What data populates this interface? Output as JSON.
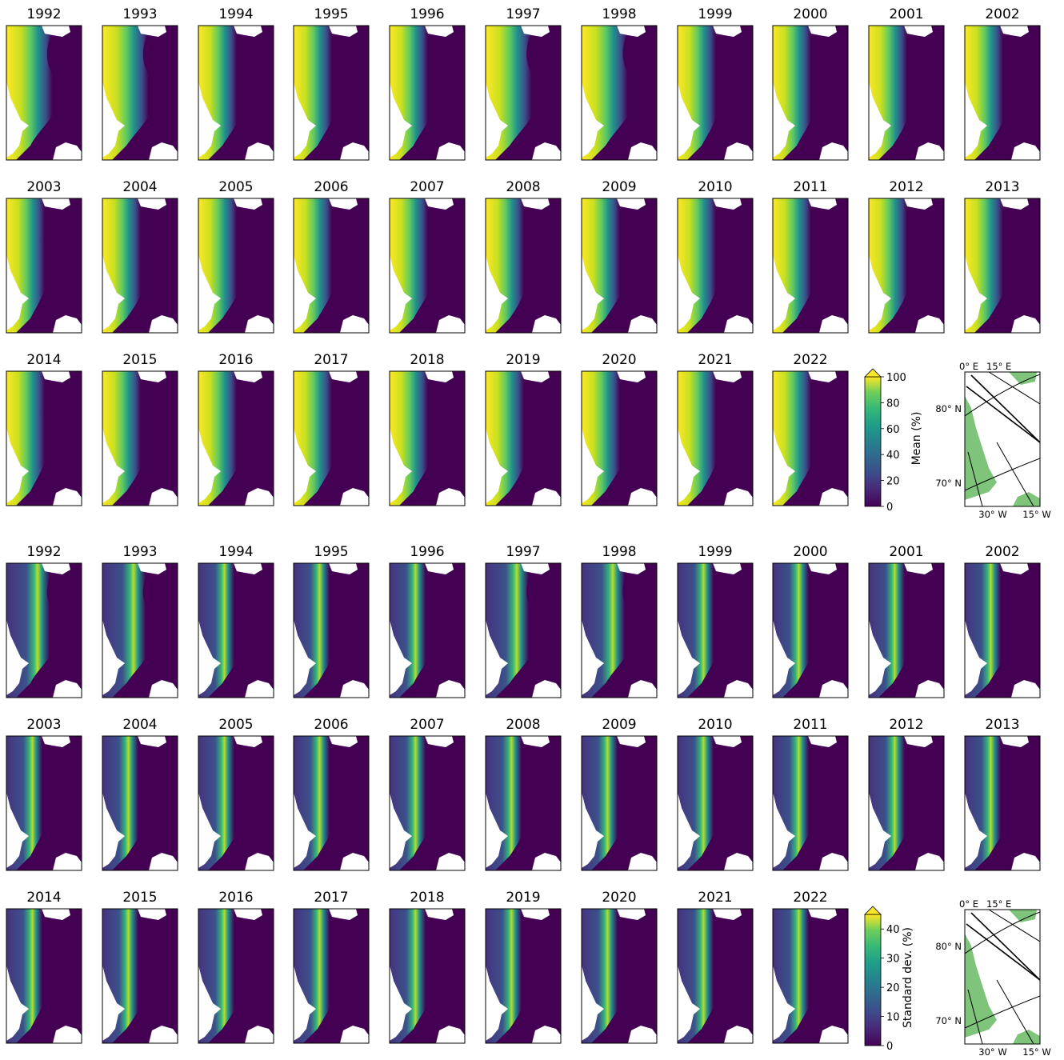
{
  "panels": {
    "mean": {
      "years": [
        "1992",
        "1993",
        "1994",
        "1995",
        "1996",
        "1997",
        "1998",
        "1999",
        "2000",
        "2001",
        "2002",
        "2003",
        "2004",
        "2005",
        "2006",
        "2007",
        "2008",
        "2009",
        "2010",
        "2011",
        "2012",
        "2013",
        "2014",
        "2015",
        "2016",
        "2017",
        "2018",
        "2019",
        "2020",
        "2021",
        "2022"
      ],
      "colorbar": {
        "label": "Mean (%)",
        "ticks": [
          "0",
          "20",
          "40",
          "60",
          "80",
          "100"
        ],
        "min": 0,
        "max": 100,
        "extend": "max"
      }
    },
    "std": {
      "years": [
        "1992",
        "1993",
        "1994",
        "1995",
        "1996",
        "1997",
        "1998",
        "1999",
        "2000",
        "2001",
        "2002",
        "2003",
        "2004",
        "2005",
        "2006",
        "2007",
        "2008",
        "2009",
        "2010",
        "2011",
        "2012",
        "2013",
        "2014",
        "2015",
        "2016",
        "2017",
        "2018",
        "2019",
        "2020",
        "2021",
        "2022"
      ],
      "colorbar": {
        "label": "Standard dev. (%)",
        "ticks": [
          "0",
          "10",
          "20",
          "30",
          "40"
        ],
        "min": 0,
        "max": 45,
        "extend": "max"
      }
    }
  },
  "locator_map": {
    "lon_labels": [
      "0° E",
      "15° E",
      "30° W",
      "15° W"
    ],
    "lat_labels": [
      "80° N",
      "70° N"
    ],
    "land_color": "#7ec47a"
  },
  "colormap": "viridis"
}
